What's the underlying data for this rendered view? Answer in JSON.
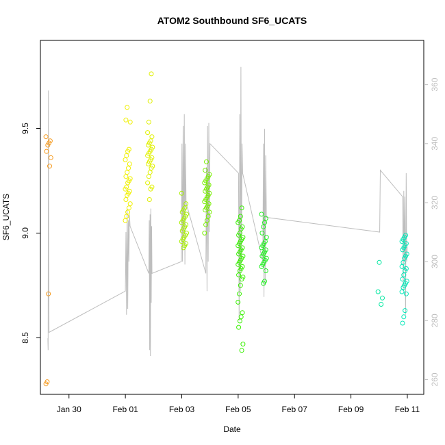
{
  "chart_data": {
    "type": "scatter",
    "title": "ATOM2 Southbound SF6_UCATS",
    "xlabel": "Date",
    "ylabel": "SF6_UCATS",
    "xlim": [
      "2017-01-28T23:40",
      "2017-02-11T14:00"
    ],
    "ylim": [
      8.23,
      9.92
    ],
    "x_ticks": [
      {
        "date": "2017-01-30",
        "label": "Jan 30"
      },
      {
        "date": "2017-02-01",
        "label": "Feb 01"
      },
      {
        "date": "2017-02-03",
        "label": "Feb 03"
      },
      {
        "date": "2017-02-05",
        "label": "Feb 05"
      },
      {
        "date": "2017-02-07",
        "label": "Feb 07"
      },
      {
        "date": "2017-02-09",
        "label": "Feb 09"
      },
      {
        "date": "2017-02-11",
        "label": "Feb 11"
      }
    ],
    "y_ticks": [
      8.5,
      9.0,
      9.5
    ],
    "y2_label": "",
    "y2lim": [
      255,
      375
    ],
    "y2_ticks": [
      260,
      280,
      300,
      320,
      340,
      360
    ],
    "grid": false,
    "legend": "none",
    "point_series": [
      {
        "date": "2017-01-29T06:30",
        "color": "#f59a1e",
        "values": [
          9.46,
          9.44,
          9.43,
          9.42,
          9.39,
          9.36,
          9.32,
          8.71,
          8.29,
          8.28
        ]
      },
      {
        "date": "2017-02-01T02:00",
        "color": "#f0f000",
        "values": [
          9.6,
          9.54,
          9.53,
          9.4,
          9.39,
          9.37,
          9.35,
          9.33,
          9.31,
          9.29,
          9.27,
          9.26,
          9.25,
          9.24,
          9.22,
          9.21,
          9.2,
          9.19,
          9.18,
          9.16,
          9.14,
          9.12,
          9.1,
          9.08,
          9.06
        ]
      },
      {
        "date": "2017-02-01T21:00",
        "color": "#e0f000",
        "values": [
          9.76,
          9.63,
          9.53,
          9.48,
          9.46,
          9.44,
          9.43,
          9.42,
          9.41,
          9.4,
          9.39,
          9.38,
          9.37,
          9.36,
          9.35,
          9.34,
          9.33,
          9.32,
          9.31,
          9.29,
          9.27,
          9.24,
          9.22,
          9.21,
          9.16
        ]
      },
      {
        "date": "2017-02-03T02:00",
        "color": "#a8f000",
        "values": [
          9.19,
          9.14,
          9.12,
          9.11,
          9.1,
          9.09,
          9.08,
          9.07,
          9.06,
          9.05,
          9.04,
          9.03,
          9.02,
          9.01,
          9.0,
          8.99,
          8.98,
          8.97,
          8.96,
          8.95,
          8.94,
          8.93
        ]
      },
      {
        "date": "2017-02-03T21:30",
        "color": "#78f000",
        "values": [
          9.34,
          9.3,
          9.28,
          9.27,
          9.26,
          9.25,
          9.24,
          9.23,
          9.22,
          9.21,
          9.2,
          9.19,
          9.18,
          9.17,
          9.16,
          9.15,
          9.14,
          9.13,
          9.12,
          9.11,
          9.1,
          9.08,
          9.06,
          9.04,
          9.0
        ]
      },
      {
        "date": "2017-02-05T02:00",
        "color": "#38f000",
        "values": [
          9.12,
          9.08,
          9.06,
          9.05,
          9.03,
          9.02,
          9.0,
          8.99,
          8.98,
          8.97,
          8.96,
          8.95,
          8.94,
          8.93,
          8.92,
          8.91,
          8.9,
          8.89,
          8.88,
          8.87,
          8.86,
          8.85,
          8.84,
          8.83,
          8.82,
          8.8,
          8.79,
          8.78,
          8.75,
          8.71,
          8.67,
          8.62,
          8.6,
          8.58,
          8.55,
          8.47,
          8.44
        ]
      },
      {
        "date": "2017-02-05T22:00",
        "color": "#20f020",
        "values": [
          9.09,
          9.07,
          9.05,
          9.03,
          9.0,
          8.98,
          8.96,
          8.95,
          8.94,
          8.93,
          8.92,
          8.91,
          8.9,
          8.89,
          8.88,
          8.87,
          8.86,
          8.85,
          8.84,
          8.82,
          8.77,
          8.76
        ]
      },
      {
        "date": "2017-02-10T00:40",
        "color": "#00e8a0",
        "values": [
          8.86,
          8.72,
          8.69,
          8.66
        ]
      },
      {
        "date": "2017-02-10T21:30",
        "color": "#00e8b8",
        "values": [
          8.99,
          8.98,
          8.97,
          8.96,
          8.95,
          8.94,
          8.93,
          8.92,
          8.9,
          8.89,
          8.88,
          8.86,
          8.84,
          8.83,
          8.82,
          8.8,
          8.78,
          8.77,
          8.76,
          8.75,
          8.74,
          8.72,
          8.71,
          8.63,
          8.6,
          8.57
        ]
      }
    ],
    "gray_line": {
      "color": "#bebebe",
      "axis": "y2",
      "points": [
        [
          "2017-01-29T06:00",
          274
        ],
        [
          "2017-01-29T06:15",
          270
        ],
        [
          "2017-01-29T06:30",
          358
        ],
        [
          "2017-01-29T06:45",
          300
        ],
        [
          "2017-01-29T07:00",
          276
        ],
        [
          "2017-02-01T00:00",
          290
        ],
        [
          "2017-02-01T00:30",
          310
        ],
        [
          "2017-02-01T01:00",
          282
        ],
        [
          "2017-02-01T01:30",
          318
        ],
        [
          "2017-02-01T02:00",
          284
        ],
        [
          "2017-02-01T02:30",
          314
        ],
        [
          "2017-02-01T03:00",
          300
        ],
        [
          "2017-02-01T03:30",
          316
        ],
        [
          "2017-02-01T04:00",
          312
        ],
        [
          "2017-02-01T20:00",
          296
        ],
        [
          "2017-02-01T20:20",
          314
        ],
        [
          "2017-02-01T20:40",
          270
        ],
        [
          "2017-02-01T21:00",
          316
        ],
        [
          "2017-02-01T21:20",
          268
        ],
        [
          "2017-02-01T21:40",
          318
        ],
        [
          "2017-02-01T22:00",
          286
        ],
        [
          "2017-02-01T22:20",
          312
        ],
        [
          "2017-02-01T22:40",
          296
        ],
        [
          "2017-02-02T23:40",
          300
        ],
        [
          "2017-02-03T00:10",
          340
        ],
        [
          "2017-02-03T00:40",
          300
        ],
        [
          "2017-02-03T01:10",
          346
        ],
        [
          "2017-02-03T01:40",
          308
        ],
        [
          "2017-02-03T02:10",
          350
        ],
        [
          "2017-02-03T02:40",
          299
        ],
        [
          "2017-02-03T03:10",
          340
        ],
        [
          "2017-02-03T03:40",
          320
        ],
        [
          "2017-02-03T20:30",
          296
        ],
        [
          "2017-02-03T21:00",
          332
        ],
        [
          "2017-02-03T21:30",
          290
        ],
        [
          "2017-02-03T22:00",
          346
        ],
        [
          "2017-02-03T22:30",
          300
        ],
        [
          "2017-02-03T23:00",
          347
        ],
        [
          "2017-02-03T23:30",
          310
        ],
        [
          "2017-02-04T00:00",
          340
        ],
        [
          "2017-02-05T00:20",
          330
        ],
        [
          "2017-02-05T00:50",
          280
        ],
        [
          "2017-02-05T01:20",
          350
        ],
        [
          "2017-02-05T01:50",
          290
        ],
        [
          "2017-02-05T02:20",
          366
        ],
        [
          "2017-02-05T02:50",
          300
        ],
        [
          "2017-02-05T03:20",
          340
        ],
        [
          "2017-02-05T03:50",
          330
        ],
        [
          "2017-02-05T21:00",
          300
        ],
        [
          "2017-02-05T21:30",
          340
        ],
        [
          "2017-02-05T22:00",
          288
        ],
        [
          "2017-02-05T22:30",
          345
        ],
        [
          "2017-02-05T23:00",
          292
        ],
        [
          "2017-02-05T23:30",
          336
        ],
        [
          "2017-02-06T00:00",
          315
        ],
        [
          "2017-02-10T00:30",
          310
        ],
        [
          "2017-02-10T01:00",
          331
        ],
        [
          "2017-02-10T20:00",
          322
        ],
        [
          "2017-02-10T20:30",
          290
        ],
        [
          "2017-02-10T21:00",
          324
        ],
        [
          "2017-02-10T21:30",
          300
        ],
        [
          "2017-02-10T22:00",
          322
        ],
        [
          "2017-02-10T22:30",
          282
        ],
        [
          "2017-02-10T23:00",
          330
        ],
        [
          "2017-02-10T23:30",
          300
        ],
        [
          "2017-02-10T23:55",
          305
        ]
      ]
    }
  }
}
